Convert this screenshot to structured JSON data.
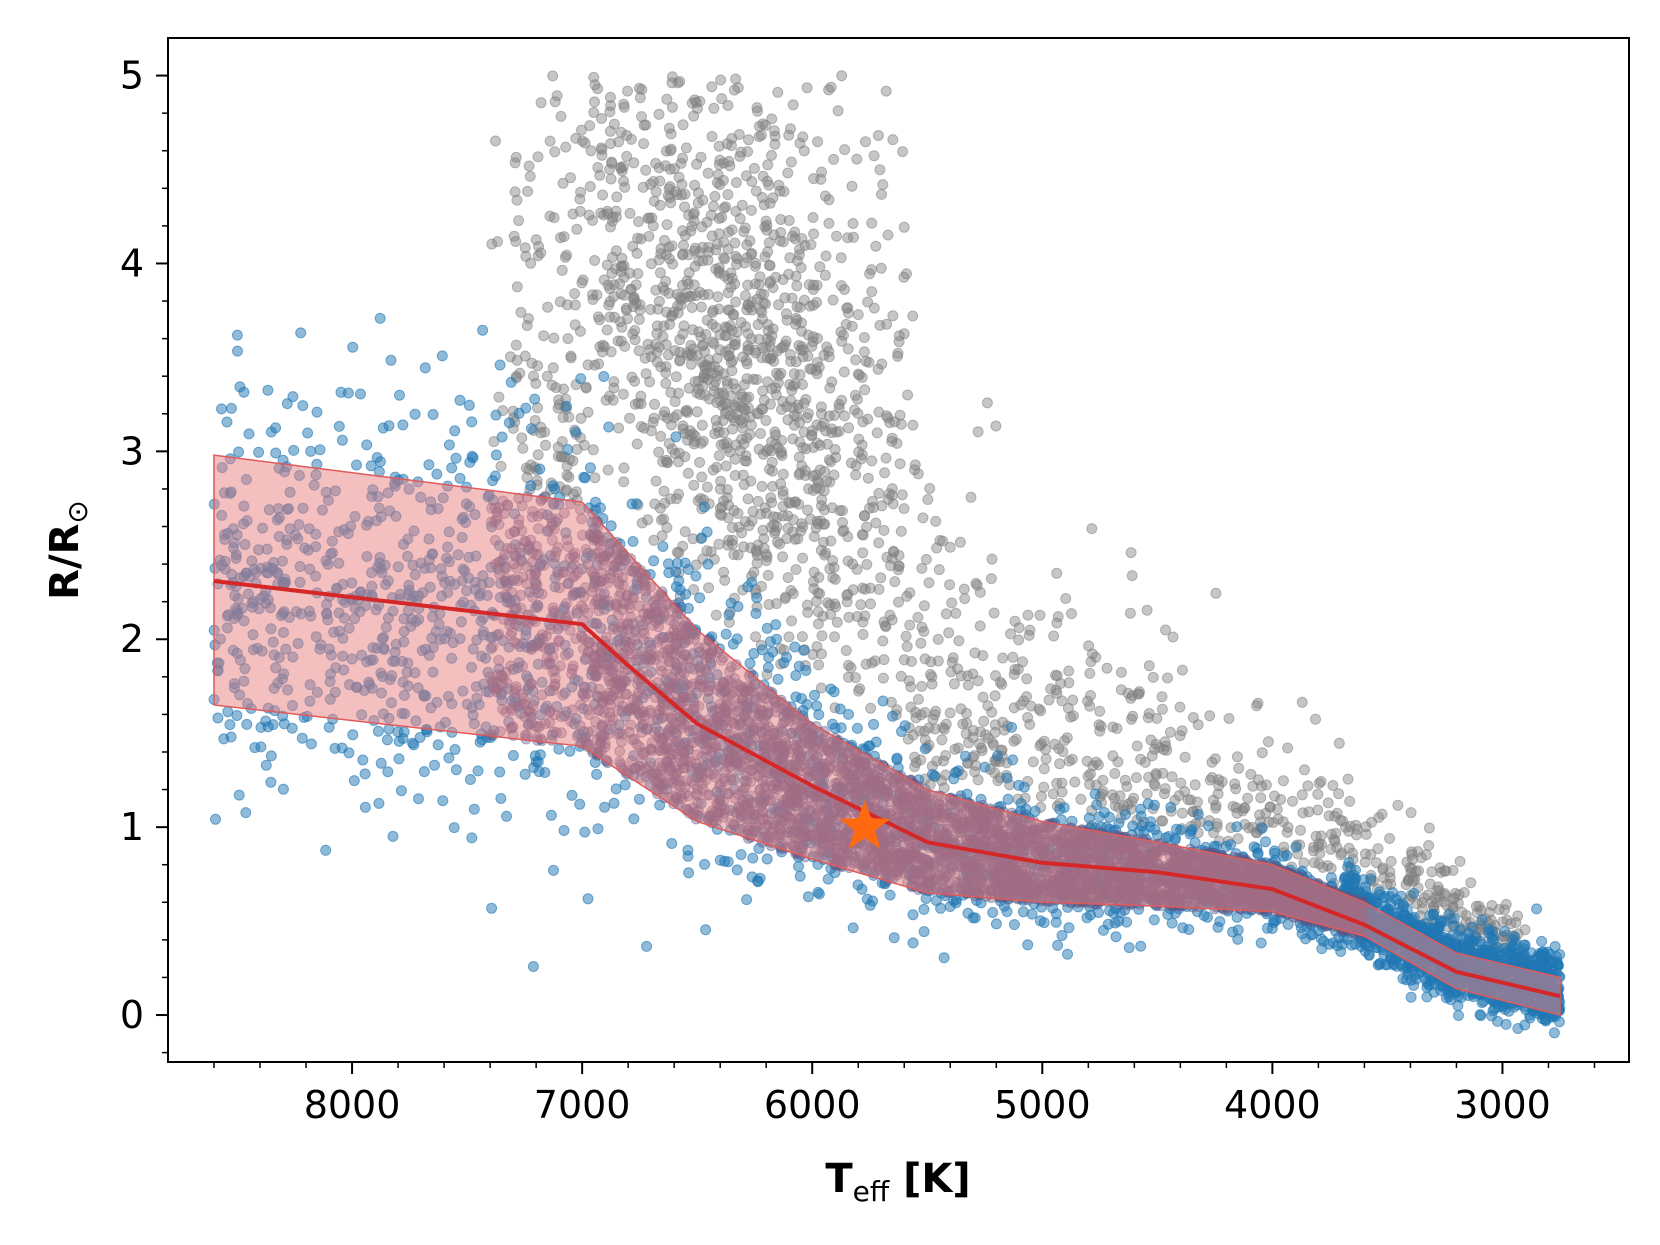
{
  "chart_data": {
    "type": "scatter",
    "title": "",
    "xlabel": {
      "main": "T",
      "sub": "eff",
      "rest": " [K]"
    },
    "ylabel": {
      "main": "R/R",
      "sub": "⊙"
    },
    "x_inverted": true,
    "xlim": [
      8800,
      2450
    ],
    "ylim": [
      -0.25,
      5.2
    ],
    "x_ticks": [
      8000,
      7000,
      6000,
      5000,
      4000,
      3000
    ],
    "y_ticks": [
      0,
      1,
      2,
      3,
      4,
      5
    ],
    "grid": false,
    "legend": "none",
    "colors": {
      "giant_points": "#808080",
      "dwarf_points": "#1f77b4",
      "model_points": "#5a5a8a",
      "band_fill": "#e88080",
      "band_edge": "#e05a5a",
      "median_line": "#d62728",
      "sun_marker": "#ff6a10"
    },
    "series": [
      {
        "kind": "median_line",
        "x": [
          8600,
          7000,
          6800,
          6500,
          6000,
          5500,
          5000,
          4500,
          4000,
          3600,
          3200,
          2750
        ],
        "y": [
          2.31,
          2.08,
          1.86,
          1.55,
          1.22,
          0.92,
          0.81,
          0.76,
          0.67,
          0.48,
          0.23,
          0.1
        ]
      },
      {
        "kind": "band_upper",
        "x": [
          8600,
          7000,
          6500,
          6000,
          5500,
          5000,
          4500,
          4000,
          3600,
          3200,
          2750
        ],
        "y": [
          2.98,
          2.73,
          2.05,
          1.55,
          1.2,
          1.03,
          0.92,
          0.8,
          0.6,
          0.33,
          0.2
        ]
      },
      {
        "kind": "band_lower",
        "x": [
          8600,
          7000,
          6500,
          6000,
          5500,
          5000,
          4500,
          4000,
          3600,
          3200,
          2750
        ],
        "y": [
          1.65,
          1.43,
          1.03,
          0.83,
          0.65,
          0.6,
          0.58,
          0.55,
          0.42,
          0.14,
          0.0
        ]
      },
      {
        "kind": "sun",
        "x": [
          5772
        ],
        "y": [
          1.0
        ]
      }
    ]
  }
}
